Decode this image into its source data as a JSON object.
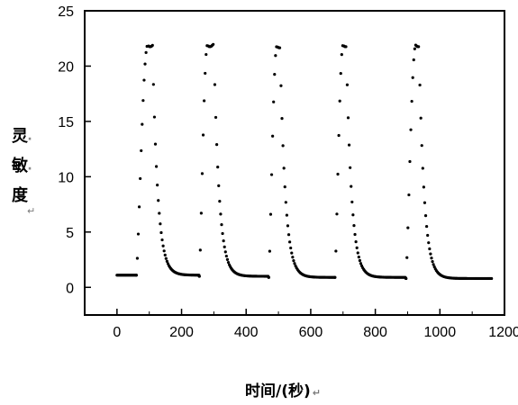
{
  "chart_data": {
    "type": "scatter",
    "title": "",
    "xlabel": "时间/(秒)",
    "xlabel_mark": "↵",
    "ylabel": "灵·敏·度",
    "ylabel_mark": "↵",
    "xlim": [
      -100,
      1200
    ],
    "ylim": [
      -2.5,
      25
    ],
    "xticks": [
      0,
      200,
      400,
      600,
      800,
      1000,
      1200
    ],
    "yticks": [
      0,
      5,
      10,
      15,
      20,
      25
    ],
    "grid": false,
    "legend": "none",
    "marker_color": "#000000",
    "cycles": [
      {
        "t_start": 0,
        "t_on": 60,
        "t_peak": 95,
        "t_off": 110,
        "t_end": 255,
        "baseline": 1.1,
        "peak": 21.9
      },
      {
        "t_start": 255,
        "t_on": 255,
        "t_peak": 280,
        "t_off": 300,
        "t_end": 470,
        "baseline": 1.0,
        "peak": 21.9
      },
      {
        "t_start": 470,
        "t_on": 470,
        "t_peak": 495,
        "t_off": 505,
        "t_end": 675,
        "baseline": 0.9,
        "peak": 21.8
      },
      {
        "t_start": 675,
        "t_on": 675,
        "t_peak": 700,
        "t_off": 710,
        "t_end": 895,
        "baseline": 0.9,
        "peak": 21.9
      },
      {
        "t_start": 895,
        "t_on": 895,
        "t_peak": 925,
        "t_off": 935,
        "t_end": 1160,
        "baseline": 0.8,
        "peak": 21.9
      }
    ],
    "sample_interval_s": 3
  }
}
